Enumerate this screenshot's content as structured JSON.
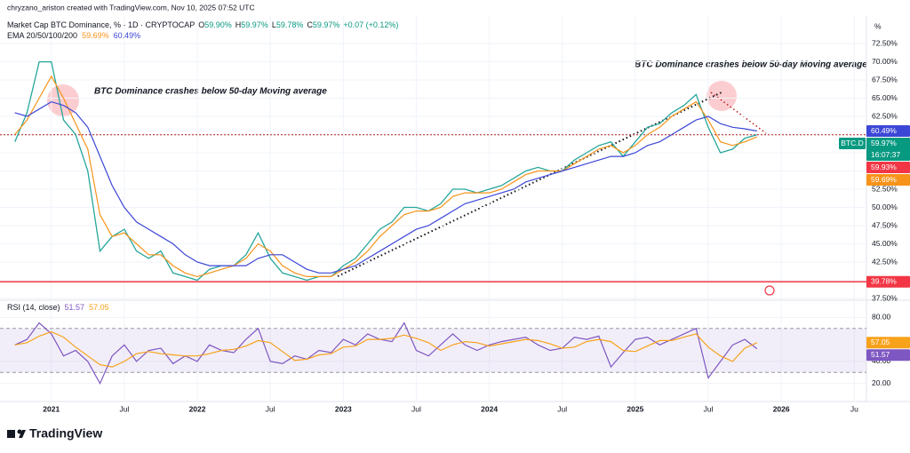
{
  "header": {
    "credit": "chryzano_ariston created with TradingView.com, Nov 10, 2025 07:52 UTC",
    "logo": "TradingView"
  },
  "chart_data": [
    {
      "type": "line",
      "title": "Market Cap BTC Dominance, % · 1D · CRYPTOCAP",
      "quote": [
        {
          "key": "O",
          "text": "59.90%"
        },
        {
          "key": "H",
          "text": "59.97%"
        },
        {
          "key": "L",
          "text": "59.78%"
        },
        {
          "key": "C",
          "text": "59.97%"
        }
      ],
      "change": "+0.07 (+0.12%)",
      "indicator": "EMA 20/50/100/200",
      "x": [
        "2020-10",
        "2020-11",
        "2020-12",
        "2021-01",
        "2021-02",
        "2021-03",
        "2021-04",
        "2021-05",
        "2021-06",
        "2021-07",
        "2021-08",
        "2021-09",
        "2021-10",
        "2021-11",
        "2021-12",
        "2022-01",
        "2022-02",
        "2022-03",
        "2022-04",
        "2022-05",
        "2022-06",
        "2022-07",
        "2022-08",
        "2022-09",
        "2022-10",
        "2022-11",
        "2022-12",
        "2023-01",
        "2023-02",
        "2023-03",
        "2023-04",
        "2023-05",
        "2023-06",
        "2023-07",
        "2023-08",
        "2023-09",
        "2023-10",
        "2023-11",
        "2023-12",
        "2024-01",
        "2024-02",
        "2024-03",
        "2024-04",
        "2024-05",
        "2024-06",
        "2024-07",
        "2024-08",
        "2024-09",
        "2024-10",
        "2024-11",
        "2024-12",
        "2025-01",
        "2025-02",
        "2025-03",
        "2025-04",
        "2025-05",
        "2025-06",
        "2025-07",
        "2025-08",
        "2025-09",
        "2025-10",
        "2025-11"
      ],
      "series": [
        {
          "color": "#26a69a",
          "values": [
            59,
            63,
            70,
            70,
            62,
            60,
            55,
            44,
            46,
            47,
            44,
            43,
            44,
            41,
            40.5,
            40,
            41.5,
            42,
            42,
            43.5,
            46.5,
            43,
            41,
            40.5,
            40,
            40.5,
            40.5,
            42,
            43,
            45,
            47,
            48,
            50,
            50,
            49.5,
            50.5,
            52.5,
            52.5,
            52,
            52.5,
            53,
            54,
            55,
            55.5,
            55,
            55,
            56.5,
            57.5,
            58.5,
            59,
            57,
            59,
            61,
            61.5,
            63,
            64,
            65.5,
            61,
            57.5,
            58,
            59.5,
            59.97
          ]
        },
        {
          "color": "#f7931a",
          "value_label": "59.69%",
          "values": [
            60,
            62,
            65,
            68,
            65,
            61.5,
            58,
            49,
            46,
            46.5,
            45,
            43.5,
            43.5,
            42,
            41,
            40.5,
            41,
            41.5,
            42,
            43,
            45,
            44,
            42,
            41,
            40.5,
            40.5,
            40.5,
            41.5,
            42.5,
            44,
            46,
            47.5,
            49,
            49.5,
            49.5,
            50,
            51.5,
            52,
            52,
            52,
            52.5,
            53.5,
            54.5,
            55,
            55,
            55,
            56,
            57,
            58,
            58.5,
            57.5,
            58.5,
            60,
            61,
            62.5,
            63.5,
            64.5,
            62,
            59,
            58.5,
            59,
            59.69
          ]
        },
        {
          "color": "#3d47d6",
          "value_label": "60.49%",
          "values": [
            63,
            62.5,
            63.5,
            64.5,
            64,
            63,
            61,
            57,
            53,
            50,
            48,
            47,
            46,
            45,
            43.5,
            42.5,
            42,
            42,
            42,
            42,
            43,
            43.5,
            43.5,
            42.5,
            41.5,
            41,
            41,
            41.5,
            42,
            43,
            44,
            45,
            46,
            47,
            47.5,
            48.5,
            49.5,
            50.5,
            51,
            51.5,
            52,
            52.5,
            53.5,
            54,
            54.5,
            55,
            55.5,
            56,
            56.5,
            57,
            57,
            57.5,
            58.5,
            59,
            60,
            61,
            62,
            62.5,
            61.5,
            61,
            60.8,
            60.49
          ]
        }
      ],
      "xlim": [
        "2020-09",
        "2026-08"
      ],
      "ylim": [
        37.5,
        75.8
      ],
      "yticks": [
        {
          "value": 37.5,
          "label": "37.50%"
        },
        {
          "value": 40,
          "label": "40.00%"
        },
        {
          "value": 42.5,
          "label": "42.50%"
        },
        {
          "value": 45,
          "label": "45.00%"
        },
        {
          "value": 47.5,
          "label": "47.50%"
        },
        {
          "value": 50,
          "label": "50.00%"
        },
        {
          "value": 52.5,
          "label": "52.50%"
        },
        {
          "value": 55,
          "label": "55.00%"
        },
        {
          "value": 57.5,
          "label": "57.50%"
        },
        {
          "value": 60,
          "label": "60.00%"
        },
        {
          "value": 62.5,
          "label": "62.50%"
        },
        {
          "value": 65,
          "label": "65.00%"
        },
        {
          "value": 67.5,
          "label": "67.50%"
        },
        {
          "value": 70,
          "label": "70.00%"
        },
        {
          "value": 72.5,
          "label": "72.50%"
        }
      ],
      "y_unit": "%",
      "grid": true,
      "symbol": "BTC.D",
      "countdown": "16:07:37",
      "price_labels": [
        {
          "value": 59.97,
          "label": "59.97%",
          "color": "#089981",
          "line": "dotted",
          "line_color": "#b71c1c"
        },
        {
          "value": 59.93,
          "label": "59.93%",
          "color": "#f23645"
        },
        {
          "value": 39.78,
          "label": "39.78%",
          "color": "#f23645",
          "line": "solid",
          "line_color": "#f23645"
        }
      ],
      "annotations": [
        "BTC Dominance crashes below 50-day Moving average",
        "BTC Dominance crashes below 50-day Moving average"
      ]
    },
    {
      "type": "line",
      "title": "RSI (14, close)",
      "x": [
        "2020-10",
        "2020-11",
        "2020-12",
        "2021-01",
        "2021-02",
        "2021-03",
        "2021-04",
        "2021-05",
        "2021-06",
        "2021-07",
        "2021-08",
        "2021-09",
        "2021-10",
        "2021-11",
        "2021-12",
        "2022-01",
        "2022-02",
        "2022-03",
        "2022-04",
        "2022-05",
        "2022-06",
        "2022-07",
        "2022-08",
        "2022-09",
        "2022-10",
        "2022-11",
        "2022-12",
        "2023-01",
        "2023-02",
        "2023-03",
        "2023-04",
        "2023-05",
        "2023-06",
        "2023-07",
        "2023-08",
        "2023-09",
        "2023-10",
        "2023-11",
        "2023-12",
        "2024-01",
        "2024-02",
        "2024-03",
        "2024-04",
        "2024-05",
        "2024-06",
        "2024-07",
        "2024-08",
        "2024-09",
        "2024-10",
        "2024-11",
        "2024-12",
        "2025-01",
        "2025-02",
        "2025-03",
        "2025-04",
        "2025-05",
        "2025-06",
        "2025-07",
        "2025-08",
        "2025-09",
        "2025-10",
        "2025-11"
      ],
      "series": [
        {
          "color": "#7e57c2",
          "value_label": "51.57",
          "values": [
            55,
            60,
            75,
            65,
            45,
            50,
            40,
            20,
            45,
            55,
            40,
            50,
            52,
            38,
            45,
            40,
            55,
            50,
            48,
            60,
            70,
            40,
            38,
            45,
            42,
            50,
            48,
            60,
            55,
            65,
            60,
            58,
            75,
            50,
            45,
            55,
            65,
            55,
            50,
            55,
            58,
            60,
            62,
            55,
            50,
            52,
            62,
            60,
            63,
            35,
            48,
            60,
            62,
            55,
            60,
            65,
            70,
            25,
            40,
            55,
            60,
            51.57
          ]
        },
        {
          "color": "#f7a21b",
          "value_label": "57.05",
          "values": [
            55,
            57,
            63,
            67,
            62,
            53,
            45,
            37,
            35,
            40,
            47,
            49,
            47,
            46,
            45,
            45,
            47,
            50,
            51,
            54,
            59,
            57,
            49,
            41,
            42,
            46,
            47,
            53,
            54,
            60,
            60,
            61,
            64,
            61,
            57,
            50,
            55,
            58,
            57,
            54,
            56,
            58,
            60,
            59,
            56,
            52,
            53,
            58,
            60,
            58,
            50,
            49,
            54,
            59,
            59,
            62,
            65,
            53,
            45,
            40,
            52,
            57.05
          ]
        }
      ],
      "xlim": [
        "2020-09",
        "2026-08"
      ],
      "ylim": [
        3.6,
        94
      ],
      "yticks": [
        {
          "value": 20,
          "label": "20.00"
        },
        {
          "value": 40,
          "label": "40.00"
        },
        {
          "value": 80,
          "label": "80.00"
        }
      ],
      "xticks": [
        {
          "value": "2021-01",
          "label": "2021"
        },
        {
          "value": "2021-07",
          "label": "Jul"
        },
        {
          "value": "2022-01",
          "label": "2022"
        },
        {
          "value": "2022-07",
          "label": "Jul"
        },
        {
          "value": "2023-01",
          "label": "2023"
        },
        {
          "value": "2023-07",
          "label": "Jul"
        },
        {
          "value": "2024-01",
          "label": "2024"
        },
        {
          "value": "2024-07",
          "label": "Jul"
        },
        {
          "value": "2025-01",
          "label": "2025"
        },
        {
          "value": "2025-07",
          "label": "Jul"
        },
        {
          "value": "2026-01",
          "label": "2026"
        },
        {
          "value": "2026-07",
          "label": "Ju"
        }
      ],
      "band": [
        30,
        70
      ],
      "grid": true
    }
  ]
}
